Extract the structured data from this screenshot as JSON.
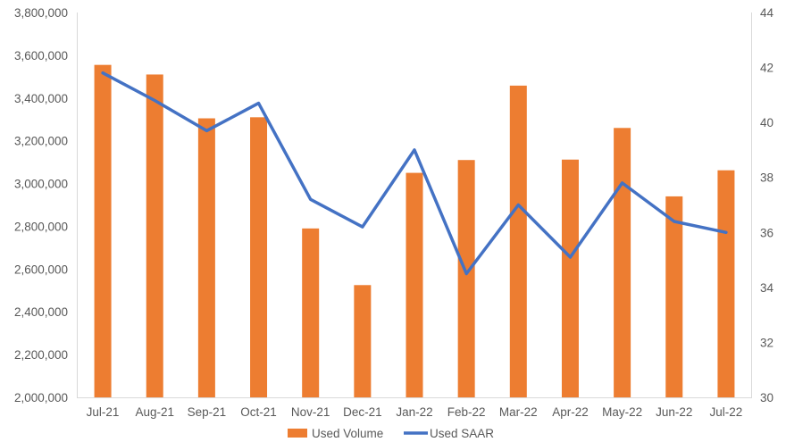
{
  "chart_data": {
    "type": "bar",
    "categories": [
      "Jul-21",
      "Aug-21",
      "Sep-21",
      "Oct-21",
      "Nov-21",
      "Dec-21",
      "Jan-22",
      "Feb-22",
      "Mar-22",
      "Apr-22",
      "May-22",
      "Jun-22",
      "Jul-22"
    ],
    "series": [
      {
        "name": "Used Volume",
        "type": "bar",
        "axis": "left",
        "color": "#ED7D31",
        "values": [
          3555000,
          3510000,
          3305000,
          3310000,
          2790000,
          2525000,
          3050000,
          3110000,
          3458000,
          3112000,
          3260000,
          2940000,
          3062000
        ]
      },
      {
        "name": "Used SAAR",
        "type": "line",
        "axis": "right",
        "color": "#4472C4",
        "values": [
          41.8,
          40.8,
          39.7,
          40.7,
          37.2,
          36.2,
          39.0,
          34.5,
          37.0,
          35.1,
          37.8,
          36.4,
          36.0
        ]
      }
    ],
    "y_left": {
      "lim": [
        2000000,
        3800000
      ],
      "ticks": [
        2000000,
        2200000,
        2400000,
        2600000,
        2800000,
        3000000,
        3200000,
        3400000,
        3600000,
        3800000
      ],
      "tick_labels": [
        "2,000,000",
        "2,200,000",
        "2,400,000",
        "2,600,000",
        "2,800,000",
        "3,000,000",
        "3,200,000",
        "3,400,000",
        "3,600,000",
        "3,800,000"
      ]
    },
    "y_right": {
      "lim": [
        30,
        44
      ],
      "ticks": [
        30,
        32,
        34,
        36,
        38,
        40,
        42,
        44
      ],
      "tick_labels": [
        "30",
        "32",
        "34",
        "36",
        "38",
        "40",
        "42",
        "44"
      ]
    },
    "grid": false,
    "legend": {
      "position": "bottom",
      "entries": [
        "Used Volume",
        "Used SAAR"
      ]
    },
    "axis_color": "#D9D9D9",
    "text_color": "#595959"
  }
}
